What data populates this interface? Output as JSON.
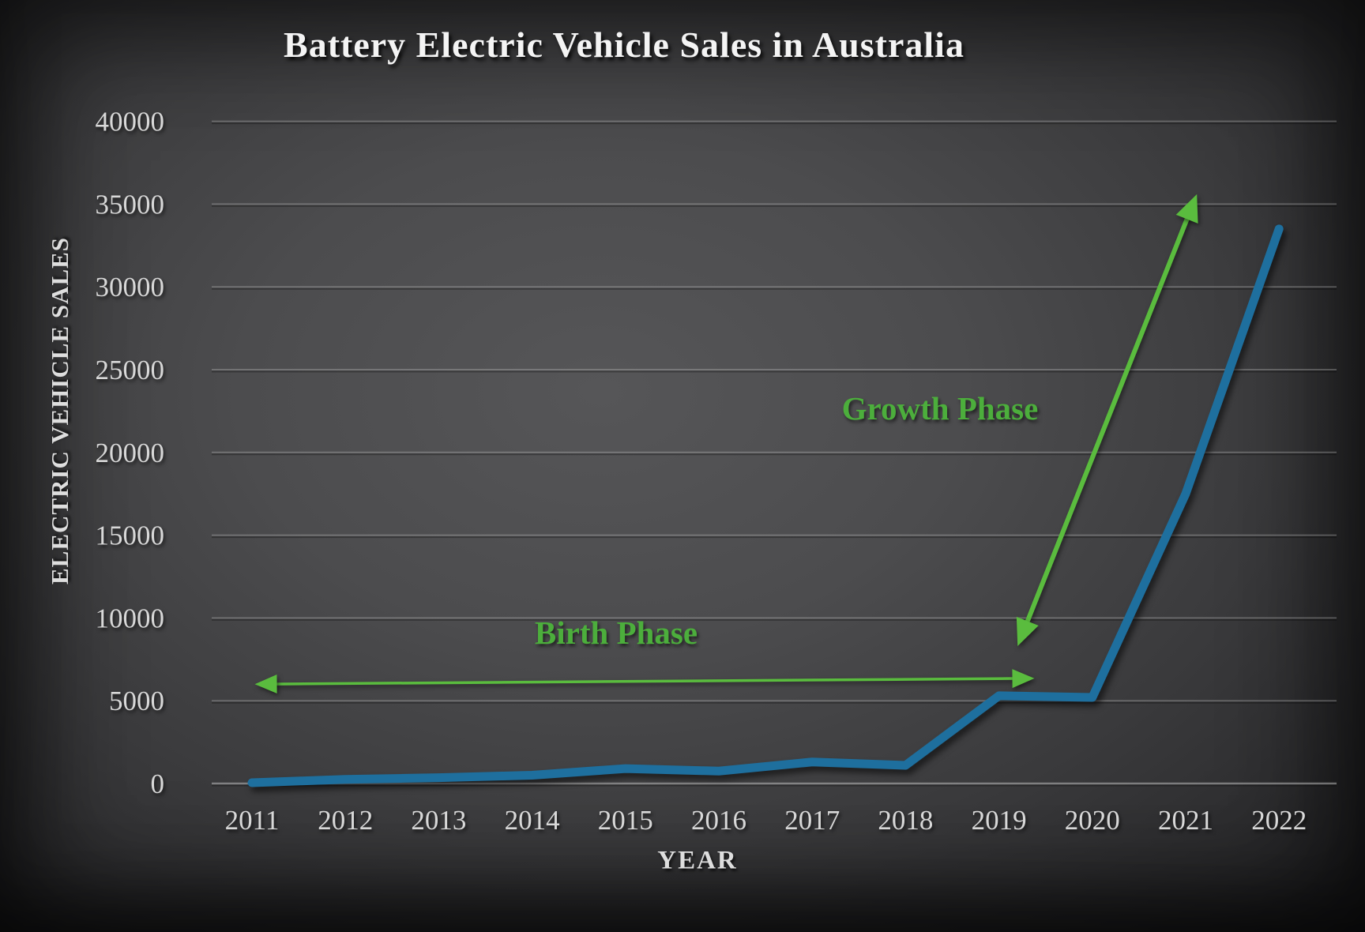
{
  "chart_data": {
    "type": "line",
    "title": "Battery Electric Vehicle Sales in Australia",
    "xlabel": "YEAR",
    "ylabel": "ELECTRIC VEHICLE SALES",
    "categories": [
      "2011",
      "2012",
      "2013",
      "2014",
      "2015",
      "2016",
      "2017",
      "2018",
      "2019",
      "2020",
      "2021",
      "2022"
    ],
    "series": [
      {
        "name": "Electric Vehicle Sales",
        "color": "#1e6f9e",
        "values": [
          50,
          250,
          350,
          500,
          900,
          750,
          1300,
          1100,
          5300,
          5200,
          17500,
          33500
        ]
      }
    ],
    "ylim": [
      0,
      40000
    ],
    "y_tick_step": 5000,
    "y_ticks": [
      "0",
      "5000",
      "10000",
      "15000",
      "20000",
      "25000",
      "30000",
      "35000",
      "40000"
    ],
    "grid": true,
    "legend": "none",
    "annotations": [
      {
        "label": "Birth Phase",
        "type": "double_arrow",
        "weight": "thin",
        "color": "#5abc3e",
        "from": {
          "year": 2011.03,
          "value": 6000
        },
        "to": {
          "year": 2019.38,
          "value": 6350
        },
        "label_pos": {
          "year": 2014.9,
          "value": 9150
        }
      },
      {
        "label": "Growth Phase",
        "type": "double_arrow",
        "weight": "thick",
        "color": "#5abc3e",
        "from": {
          "year": 2019.2,
          "value": 8300
        },
        "to": {
          "year": 2021.12,
          "value": 35600
        },
        "label_pos": {
          "year": 2018.4,
          "value": 22700
        }
      }
    ]
  }
}
